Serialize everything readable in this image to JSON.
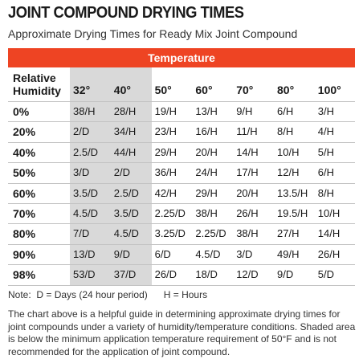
{
  "title": "JOINT COMPOUND DRYING TIMES",
  "subtitle": "Approximate Drying Times for Ready Mix Joint Compound",
  "table": {
    "group_header": "Temperature",
    "corner": "Relative Humidity",
    "columns": [
      "32°",
      "40°",
      "50°",
      "60°",
      "70°",
      "80°",
      "100°"
    ],
    "rows": [
      [
        "0%",
        "38/H",
        "28/H",
        "19/H",
        "13/H",
        "9/H",
        "6/H",
        "3/H"
      ],
      [
        "20%",
        "2/D",
        "34/H",
        "23/H",
        "16/H",
        "11/H",
        "8/H",
        "4/H"
      ],
      [
        "40%",
        "2.5/D",
        "44/H",
        "29/H",
        "20/H",
        "14/H",
        "10/H",
        "5/H"
      ],
      [
        "50%",
        "3/D",
        "2/D",
        "36/H",
        "24/H",
        "17/H",
        "12/H",
        "6/H"
      ],
      [
        "60%",
        "3.5/D",
        "2.5/D",
        "42/H",
        "29/H",
        "20/H",
        "13.5/H",
        "8/H"
      ],
      [
        "70%",
        "4.5/D",
        "3.5/D",
        "2.25/D",
        "38/H",
        "26/H",
        "19.5/H",
        "10/H"
      ],
      [
        "80%",
        "7/D",
        "4.5/D",
        "3.25/D",
        "2.25/D",
        "38/H",
        "27/H",
        "14/H"
      ],
      [
        "90%",
        "13/D",
        "9/D",
        "6/D",
        "4.5/D",
        "3/D",
        "49/H",
        "26/H"
      ],
      [
        "98%",
        "53/D",
        "37/D",
        "26/D",
        "18/D",
        "12/D",
        "9/D",
        "5/D"
      ]
    ]
  },
  "note": "Note:  D = Days (24 hour period)      H = Hours",
  "description": "The chart above is a helpful guide in determining approximate drying times for joint compounds under a variety of humidity/temperature conditions. Shaded area is below the minimum application temperature requirement of 50°F and is not recommended for the application of joint compound."
}
